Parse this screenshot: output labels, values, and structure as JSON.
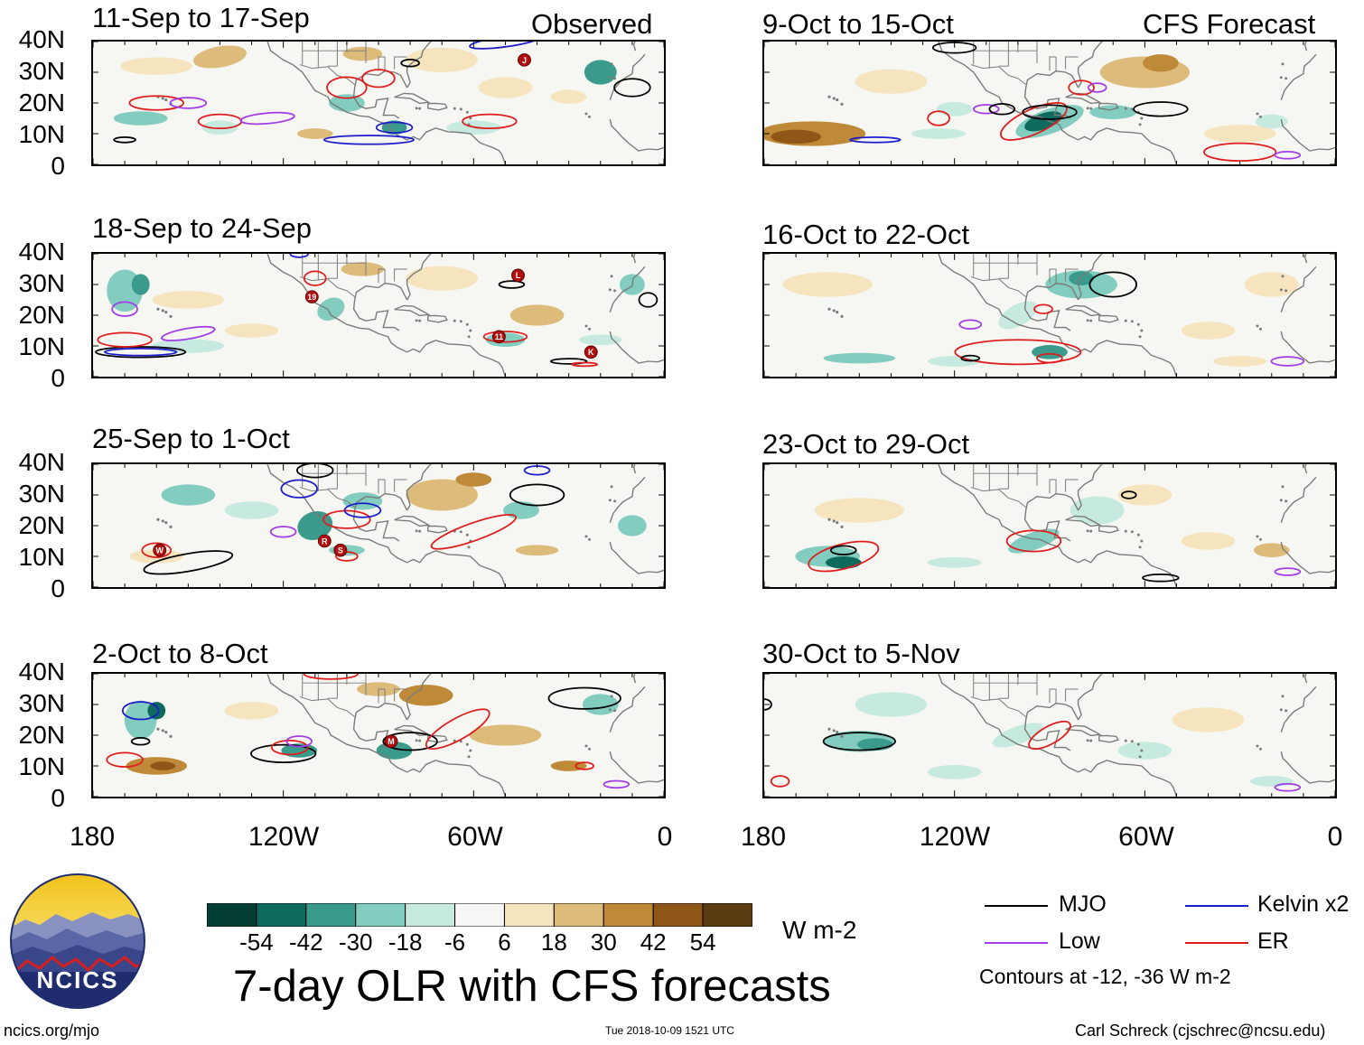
{
  "main_title": "7-day OLR with CFS forecasts",
  "observed_label": "Observed",
  "forecast_label": "CFS Forecast",
  "panels": [
    {
      "title": "11-Sep to 17-Sep"
    },
    {
      "title": "9-Oct to 15-Oct"
    },
    {
      "title": "18-Sep to 24-Sep"
    },
    {
      "title": "16-Oct to 22-Oct"
    },
    {
      "title": "25-Sep to 1-Oct"
    },
    {
      "title": "23-Oct to 29-Oct"
    },
    {
      "title": "2-Oct to 8-Oct"
    },
    {
      "title": "30-Oct to 5-Nov"
    }
  ],
  "colors": {
    "mjo": "#000000",
    "kelvin": "#1c1ccc",
    "low": "#a23ce6",
    "er": "#e01c1c",
    "ocean": "#f6f6f2",
    "land_line": "#7a7a7a",
    "storm": "#b30f0f"
  },
  "colorbar": {
    "colors": [
      "#043d34",
      "#0f6a5e",
      "#3a9a8c",
      "#82cdbf",
      "#c6eadf",
      "#f6f6f4",
      "#f5e4be",
      "#ddbb7a",
      "#bf8a37",
      "#8e5717",
      "#5a3b12"
    ],
    "labels": [
      "-54",
      "-42",
      "-30",
      "-18",
      "-6",
      "6",
      "18",
      "30",
      "42",
      "54"
    ],
    "units": "W m-2"
  },
  "legend": {
    "items": [
      {
        "label": "MJO",
        "color": "#000000"
      },
      {
        "label": "Kelvin x2",
        "color": "#1c1ccc"
      },
      {
        "label": "Low",
        "color": "#a23ce6"
      },
      {
        "label": "ER",
        "color": "#e01c1c"
      }
    ],
    "note": "Contours at -12, -36 W m-2"
  },
  "footer": {
    "site": "ncics.org/mjo",
    "timestamp": "Tue 2018-10-09 1521 UTC",
    "author": "Carl Schreck (cjschrec@ncsu.edu)"
  },
  "logo": {
    "text": "NCICS"
  },
  "chart_data": {
    "type": "heatmap",
    "title": "7-day OLR with CFS forecasts",
    "variable": "OLR anomaly",
    "units": "W m-2",
    "contour_levels": [
      -12,
      -36
    ],
    "x_ticks": [
      "180",
      "120W",
      "60W",
      "0"
    ],
    "y_ticks": [
      "40N",
      "30N",
      "20N",
      "10N",
      "0"
    ],
    "xlim_deg_east": [
      180,
      360
    ],
    "ylim_deg_north": [
      0,
      40
    ],
    "storms": [
      {
        "panel": 0,
        "label": "J",
        "lon": -44,
        "lat": 34
      },
      {
        "panel": 2,
        "label": "L",
        "lon": -46,
        "lat": 33
      },
      {
        "panel": 2,
        "label": "19",
        "lon": -111,
        "lat": 26
      },
      {
        "panel": 2,
        "label": "11",
        "lon": -52,
        "lat": 13
      },
      {
        "panel": 2,
        "label": "K",
        "lon": -23,
        "lat": 8
      },
      {
        "panel": 4,
        "label": "W",
        "lon": -159,
        "lat": 12
      },
      {
        "panel": 4,
        "label": "R",
        "lon": -107,
        "lat": 15
      },
      {
        "panel": 4,
        "label": "S",
        "lon": -102,
        "lat": 12
      },
      {
        "panel": 6,
        "label": "M",
        "lon": -86,
        "lat": 18
      }
    ]
  }
}
